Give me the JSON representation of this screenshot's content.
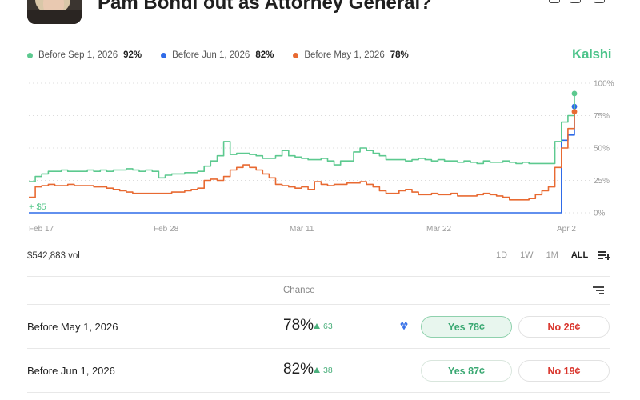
{
  "header": {
    "title": "Pam Bondi out as Attorney General?"
  },
  "legend": [
    {
      "label": "Before Sep 1, 2026",
      "value": "92%",
      "color": "#5cc98f"
    },
    {
      "label": "Before Jun 1, 2026",
      "value": "82%",
      "color": "#2f6be8"
    },
    {
      "label": "Before May 1, 2026",
      "value": "78%",
      "color": "#e86a32"
    }
  ],
  "brand": "Kalshi",
  "volume": "$542,883 vol",
  "ranges": [
    "1D",
    "1W",
    "1M",
    "ALL"
  ],
  "active_range": "ALL",
  "table": {
    "chance_header": "Chance",
    "rows": [
      {
        "name": "Before May 1, 2026",
        "chance": "78%",
        "delta": "63",
        "yes": "Yes 78¢",
        "no": "No 26¢"
      },
      {
        "name": "Before Jun 1, 2026",
        "chance": "82%",
        "delta": "38",
        "yes": "Yes 87¢",
        "no": "No 19¢"
      }
    ]
  },
  "chart_data": {
    "type": "line",
    "x_ticks": [
      "Feb 17",
      "Feb 28",
      "Mar 11",
      "Mar 22",
      "Apr 2"
    ],
    "y_ticks": [
      "0%",
      "25%",
      "50%",
      "75%",
      "100%"
    ],
    "ylim": [
      0,
      100
    ],
    "annotation": "+ $5",
    "series": [
      {
        "name": "Before Sep 1, 2026",
        "color": "#5cc98f",
        "values": [
          24,
          28,
          30,
          32,
          32,
          33,
          32,
          32,
          32,
          33,
          32,
          33,
          32,
          33,
          33,
          34,
          33,
          32,
          33,
          32,
          27,
          29,
          30,
          30,
          31,
          31,
          32,
          36,
          40,
          44,
          55,
          45,
          46,
          46,
          45,
          44,
          42,
          42,
          44,
          48,
          44,
          43,
          42,
          41,
          41,
          42,
          40,
          37,
          40,
          40,
          47,
          50,
          48,
          46,
          44,
          41,
          41,
          41,
          40,
          41,
          42,
          41,
          40,
          41,
          40,
          40,
          39,
          40,
          39,
          38,
          40,
          39,
          39,
          40,
          39,
          38,
          39,
          38,
          38,
          38,
          38,
          55,
          70,
          75,
          92
        ]
      },
      {
        "name": "Before Jun 1, 2026",
        "color": "#2f6be8",
        "values": [
          0,
          0,
          0,
          0,
          0,
          0,
          0,
          0,
          0,
          0,
          0,
          0,
          0,
          0,
          0,
          0,
          0,
          0,
          0,
          0,
          0,
          0,
          0,
          0,
          0,
          0,
          0,
          0,
          0,
          0,
          0,
          0,
          0,
          0,
          0,
          0,
          0,
          0,
          0,
          0,
          0,
          0,
          0,
          0,
          0,
          0,
          0,
          0,
          0,
          0,
          0,
          0,
          0,
          0,
          0,
          0,
          0,
          0,
          0,
          0,
          0,
          0,
          0,
          0,
          0,
          0,
          0,
          0,
          0,
          0,
          0,
          0,
          0,
          0,
          0,
          0,
          0,
          0,
          0,
          0,
          0,
          0,
          56,
          60,
          82
        ]
      },
      {
        "name": "Before May 1, 2026",
        "color": "#e86a32",
        "values": [
          12,
          20,
          21,
          22,
          21,
          21,
          22,
          21,
          21,
          21,
          20,
          20,
          19,
          18,
          17,
          16,
          15,
          15,
          15,
          15,
          15,
          15,
          16,
          16,
          17,
          18,
          19,
          25,
          26,
          25,
          28,
          33,
          35,
          37,
          35,
          33,
          30,
          27,
          22,
          21,
          20,
          19,
          20,
          18,
          24,
          22,
          21,
          22,
          22,
          23,
          23,
          24,
          22,
          20,
          17,
          15,
          15,
          17,
          18,
          16,
          14,
          14,
          15,
          14,
          14,
          15,
          13,
          13,
          13,
          14,
          15,
          14,
          13,
          12,
          10,
          10,
          10,
          11,
          14,
          17,
          20,
          35,
          50,
          65,
          78
        ]
      }
    ]
  }
}
